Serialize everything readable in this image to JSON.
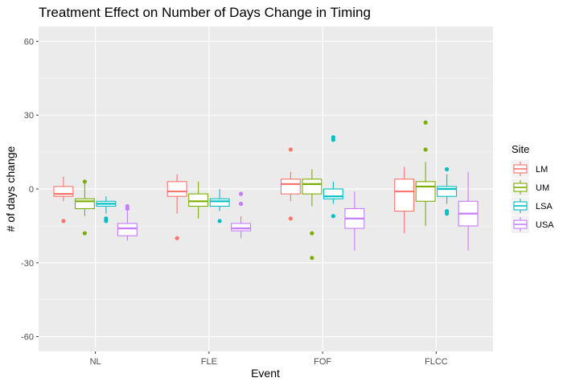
{
  "chart_data": {
    "type": "boxplot",
    "title": "Treatment Effect on Number of Days Change in Timing",
    "xlabel": "Event",
    "ylabel": "# of days change",
    "categories": [
      "NL",
      "FLE",
      "FOF",
      "FLCC"
    ],
    "yticks": [
      "60",
      "30",
      "0",
      "-30",
      "-60"
    ],
    "ytick_values": [
      60,
      30,
      0,
      -30,
      -60
    ],
    "ylim": [
      -66,
      66
    ],
    "grid": true,
    "legend_title": "Site",
    "legend_position": "right",
    "series": [
      {
        "name": "LM",
        "color": "#F8766D",
        "boxes": [
          {
            "min": -5,
            "q1": -3,
            "median": -2,
            "q3": 1,
            "max": 5,
            "outliers": [
              -13
            ]
          },
          {
            "min": -10,
            "q1": -3,
            "median": -1,
            "q3": 3,
            "max": 6,
            "outliers": [
              -20
            ]
          },
          {
            "min": -5,
            "q1": -2,
            "median": 2,
            "q3": 4,
            "max": 7,
            "outliers": [
              16,
              -12
            ]
          },
          {
            "min": -18,
            "q1": -9,
            "median": -1,
            "q3": 4,
            "max": 9,
            "outliers": []
          }
        ]
      },
      {
        "name": "UM",
        "color": "#7CAE00",
        "boxes": [
          {
            "min": -11,
            "q1": -8,
            "median": -5,
            "q3": -4,
            "max": 3,
            "outliers": [
              -18,
              3
            ]
          },
          {
            "min": -12,
            "q1": -7,
            "median": -5,
            "q3": -2,
            "max": 3,
            "outliers": []
          },
          {
            "min": -7,
            "q1": -2,
            "median": 2,
            "q3": 4,
            "max": 8,
            "outliers": [
              -18,
              -28
            ]
          },
          {
            "min": -15,
            "q1": -5,
            "median": 1,
            "q3": 3,
            "max": 11,
            "outliers": [
              16,
              27
            ]
          }
        ]
      },
      {
        "name": "LSA",
        "color": "#00BFC4",
        "boxes": [
          {
            "min": -10,
            "q1": -7,
            "median": -6,
            "q3": -5,
            "max": -3,
            "outliers": [
              -12,
              -13
            ]
          },
          {
            "min": -9,
            "q1": -7,
            "median": -5,
            "q3": -4,
            "max": 0,
            "outliers": [
              -13
            ]
          },
          {
            "min": -6,
            "q1": -4,
            "median": -3,
            "q3": 0,
            "max": 3,
            "outliers": [
              -11,
              20,
              21
            ]
          },
          {
            "min": -6,
            "q1": -3,
            "median": 0,
            "q3": 1,
            "max": 6,
            "outliers": [
              -9,
              -10,
              8
            ]
          }
        ]
      },
      {
        "name": "USA",
        "color": "#C77CFF",
        "boxes": [
          {
            "min": -21,
            "q1": -19,
            "median": -16,
            "q3": -14,
            "max": -9,
            "outliers": [
              -7,
              -8
            ]
          },
          {
            "min": -20,
            "q1": -17,
            "median": -16,
            "q3": -14,
            "max": -11,
            "outliers": [
              -2,
              -6
            ]
          },
          {
            "min": -25,
            "q1": -16,
            "median": -12,
            "q3": -8,
            "max": -1,
            "outliers": []
          },
          {
            "min": -25,
            "q1": -15,
            "median": -10,
            "q3": -5,
            "max": 7,
            "outliers": []
          }
        ]
      }
    ]
  }
}
